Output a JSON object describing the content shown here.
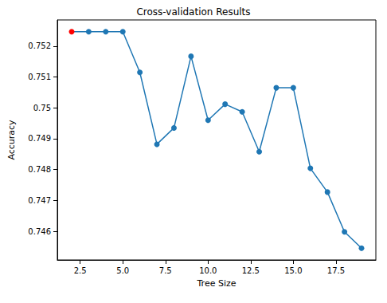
{
  "chart_data": {
    "type": "line",
    "title": "Cross-validation Results",
    "x_label": "Tree Size",
    "y_label": "Accuracy",
    "x": [
      2,
      3,
      4,
      5,
      6,
      7,
      8,
      9,
      10,
      11,
      12,
      13,
      14,
      15,
      16,
      17,
      18,
      19
    ],
    "values": [
      0.75247,
      0.75247,
      0.75247,
      0.75247,
      0.75115,
      0.74882,
      0.74935,
      0.75167,
      0.7496,
      0.75012,
      0.74987,
      0.74858,
      0.75065,
      0.75065,
      0.74804,
      0.74727,
      0.74598,
      0.74545
    ],
    "color": "#1f77b4",
    "colors": [
      "#ff0000",
      "#1f77b4",
      "#1f77b4",
      "#1f77b4",
      "#1f77b4",
      "#1f77b4",
      "#1f77b4",
      "#1f77b4",
      "#1f77b4",
      "#1f77b4",
      "#1f77b4",
      "#1f77b4",
      "#1f77b4",
      "#1f77b4",
      "#1f77b4",
      "#1f77b4",
      "#1f77b4",
      "#1f77b4"
    ],
    "marker": "circle",
    "xlim": [
      1.16,
      19.84
    ],
    "xticks": [
      2.5,
      {
        "value": 5,
        "label": "5.0"
      },
      7.5,
      {
        "value": 10,
        "label": "10.0"
      },
      12.5,
      {
        "value": 15,
        "label": "15.0"
      },
      17.5
    ],
    "ylim": [
      0.74507,
      0.75285
    ],
    "yticks": [
      0.746,
      0.747,
      0.748,
      0.749,
      0.75,
      0.751,
      0.752
    ],
    "grid": false
  }
}
